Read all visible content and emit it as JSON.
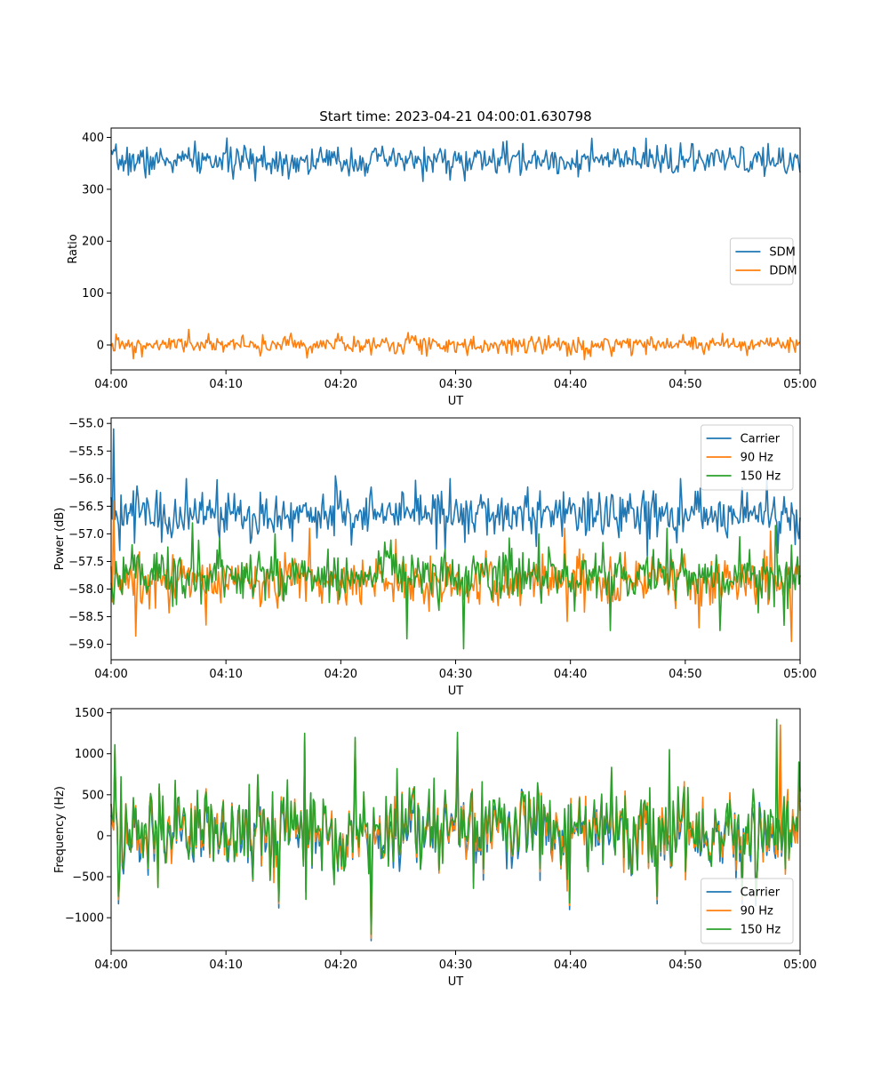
{
  "chart_data": [
    {
      "type": "line",
      "title": "Start time: 2023-04-21 04:00:01.630798",
      "xlabel": "UT",
      "ylabel": "Ratio",
      "x_range": [
        "04:00",
        "05:00"
      ],
      "x_ticks": [
        "04:00",
        "04:10",
        "04:20",
        "04:30",
        "04:40",
        "04:50",
        "05:00"
      ],
      "ylim": [
        -48,
        418
      ],
      "y_ticks": [
        0,
        100,
        200,
        300,
        400
      ],
      "y_tick_labels": [
        "0",
        "100",
        "200",
        "300",
        "400"
      ],
      "legend_position": "center-right",
      "series": [
        {
          "name": "SDM",
          "color": "#1f77b4",
          "mean": 355,
          "amp": 14,
          "peaks": [
            [
              34.5,
              393
            ],
            [
              56.9,
              396
            ],
            [
              37.9,
              375
            ],
            [
              6.8,
              380
            ],
            [
              13.3,
              383
            ],
            [
              48.3,
              386
            ]
          ],
          "troughs": [
            [
              30.8,
              316
            ],
            [
              56.9,
              325
            ],
            [
              3.0,
              322
            ],
            [
              14.0,
              330
            ]
          ]
        },
        {
          "name": "DDM",
          "color": "#ff7f0e",
          "mean": 0,
          "amp": 8,
          "peaks": [
            [
              6.8,
              30
            ],
            [
              25.9,
              24
            ],
            [
              53.2,
              22
            ],
            [
              19.8,
              22
            ],
            [
              11.5,
              19
            ]
          ],
          "troughs": [
            [
              17.1,
              -25
            ],
            [
              41.8,
              -22
            ],
            [
              2.7,
              -23
            ],
            [
              55.4,
              -20
            ],
            [
              31.0,
              -20
            ]
          ]
        }
      ]
    },
    {
      "type": "line",
      "title": "",
      "xlabel": "UT",
      "ylabel": "Power (dB)",
      "x_range": [
        "04:00",
        "05:00"
      ],
      "x_ticks": [
        "04:00",
        "04:10",
        "04:20",
        "04:30",
        "04:40",
        "04:50",
        "05:00"
      ],
      "ylim": [
        -59.28,
        -54.9
      ],
      "y_ticks": [
        -55.0,
        -55.5,
        -56.0,
        -56.5,
        -57.0,
        -57.5,
        -58.0,
        -58.5,
        -59.0
      ],
      "y_tick_labels": [
        "−55.0",
        "−55.5",
        "−56.0",
        "−56.5",
        "−57.0",
        "−57.5",
        "−58.0",
        "−58.5",
        "−59.0"
      ],
      "legend_position": "top-right",
      "series": [
        {
          "name": "Carrier",
          "color": "#1f77b4",
          "mean": -56.65,
          "amp": 0.22,
          "peaks": [
            [
              0.2,
              -55.1
            ],
            [
              6.6,
              -56.0
            ],
            [
              19.5,
              -55.95
            ],
            [
              29.5,
              -56.0
            ],
            [
              49.6,
              -56.0
            ],
            [
              57.1,
              -56.0
            ]
          ],
          "troughs": [
            [
              0.8,
              -57.3
            ],
            [
              46.7,
              -57.4
            ],
            [
              58.1,
              -57.35
            ],
            [
              29.1,
              -57.3
            ]
          ]
        },
        {
          "name": "90 Hz",
          "color": "#ff7f0e",
          "mean": -57.85,
          "amp": 0.23,
          "peaks": [
            [
              0.2,
              -56.4
            ],
            [
              17.3,
              -56.9
            ],
            [
              39.5,
              -56.9
            ],
            [
              57.4,
              -56.95
            ],
            [
              24.8,
              -57.1
            ]
          ],
          "troughs": [
            [
              2.1,
              -58.85
            ],
            [
              59.2,
              -58.95
            ],
            [
              8.3,
              -58.65
            ],
            [
              51.2,
              -58.7
            ]
          ]
        },
        {
          "name": "150 Hz",
          "color": "#2ca02c",
          "mean": -57.75,
          "amp": 0.25,
          "peaks": [
            [
              7.1,
              -56.8
            ],
            [
              14.3,
              -57.0
            ],
            [
              48.4,
              -56.9
            ],
            [
              57.9,
              -56.85
            ],
            [
              37.2,
              -57.0
            ]
          ],
          "troughs": [
            [
              30.7,
              -59.08
            ],
            [
              25.8,
              -58.9
            ],
            [
              43.5,
              -58.75
            ],
            [
              53.0,
              -58.75
            ]
          ]
        }
      ]
    },
    {
      "type": "line",
      "title": "",
      "xlabel": "UT",
      "ylabel": "Frequency (Hz)",
      "x_range": [
        "04:00",
        "05:00"
      ],
      "x_ticks": [
        "04:00",
        "04:10",
        "04:20",
        "04:30",
        "04:40",
        "04:50",
        "05:00"
      ],
      "ylim": [
        -1400,
        1550
      ],
      "y_ticks": [
        -1000,
        -500,
        0,
        500,
        1000,
        1500
      ],
      "y_tick_labels": [
        "−1000",
        "−500",
        "0",
        "500",
        "1000",
        "1500"
      ],
      "legend_position": "bottom-right",
      "series": [
        {
          "name": "Carrier",
          "color": "#1f77b4",
          "mean": 30,
          "amp": 260,
          "peaks": [
            [
              58.3,
              1300
            ],
            [
              0.3,
              1000
            ],
            [
              16.9,
              1150
            ],
            [
              30.2,
              1150
            ],
            [
              21.2,
              1100
            ]
          ],
          "troughs": [
            [
              22.7,
              -1280
            ],
            [
              0.6,
              -830
            ],
            [
              14.6,
              -880
            ],
            [
              39.9,
              -900
            ],
            [
              47.5,
              -830
            ],
            [
              55.0,
              -830
            ]
          ]
        },
        {
          "name": "90 Hz",
          "color": "#ff7f0e",
          "mean": 65,
          "amp": 275,
          "peaks": [
            [
              58.3,
              1350
            ],
            [
              0.3,
              1050
            ],
            [
              16.9,
              1200
            ],
            [
              30.2,
              1200
            ],
            [
              21.2,
              1150
            ]
          ],
          "troughs": [
            [
              22.7,
              -1250
            ],
            [
              0.6,
              -780
            ],
            [
              14.6,
              -830
            ],
            [
              39.9,
              -850
            ],
            [
              47.5,
              -780
            ],
            [
              55.0,
              -780
            ]
          ]
        },
        {
          "name": "150 Hz",
          "color": "#2ca02c",
          "mean": 95,
          "amp": 290,
          "peaks": [
            [
              58.0,
              1420
            ],
            [
              0.3,
              1110
            ],
            [
              16.9,
              1250
            ],
            [
              30.2,
              1260
            ],
            [
              21.2,
              1200
            ],
            [
              48.6,
              1050
            ]
          ],
          "troughs": [
            [
              22.7,
              -1200
            ],
            [
              0.6,
              -740
            ],
            [
              14.6,
              -800
            ],
            [
              39.9,
              -820
            ],
            [
              47.5,
              -740
            ],
            [
              55.0,
              -740
            ]
          ]
        }
      ]
    }
  ]
}
